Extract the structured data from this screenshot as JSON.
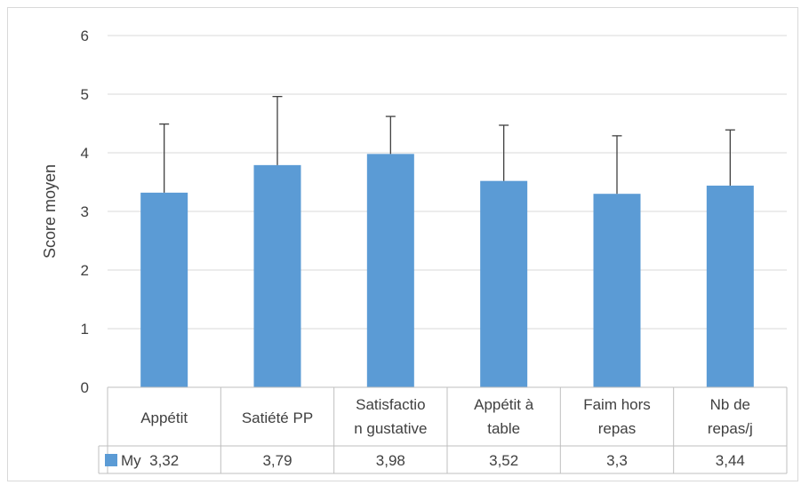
{
  "chart_data": {
    "type": "bar",
    "ylabel": "Score moyen",
    "ylim": [
      0,
      6
    ],
    "yticks": [
      "0",
      "1",
      "2",
      "3",
      "4",
      "5",
      "6"
    ],
    "grid": true,
    "categories": [
      [
        "Appétit"
      ],
      [
        "Satiété PP"
      ],
      [
        "Satisfactio",
        "n gustative"
      ],
      [
        "Appétit à",
        "table"
      ],
      [
        "Faim hors",
        "repas"
      ],
      [
        "Nb de",
        "repas/j"
      ]
    ],
    "series": [
      {
        "name": "My",
        "color": "#5b9bd5",
        "values": [
          3.32,
          3.79,
          3.98,
          3.52,
          3.3,
          3.44
        ],
        "error_upper": [
          4.49,
          4.96,
          4.62,
          4.47,
          4.29,
          4.39
        ]
      }
    ],
    "data_table": {
      "legend_label": "My",
      "values_text": [
        "3,32",
        "3,79",
        "3,98",
        "3,52",
        "3,3",
        "3,44"
      ]
    }
  }
}
